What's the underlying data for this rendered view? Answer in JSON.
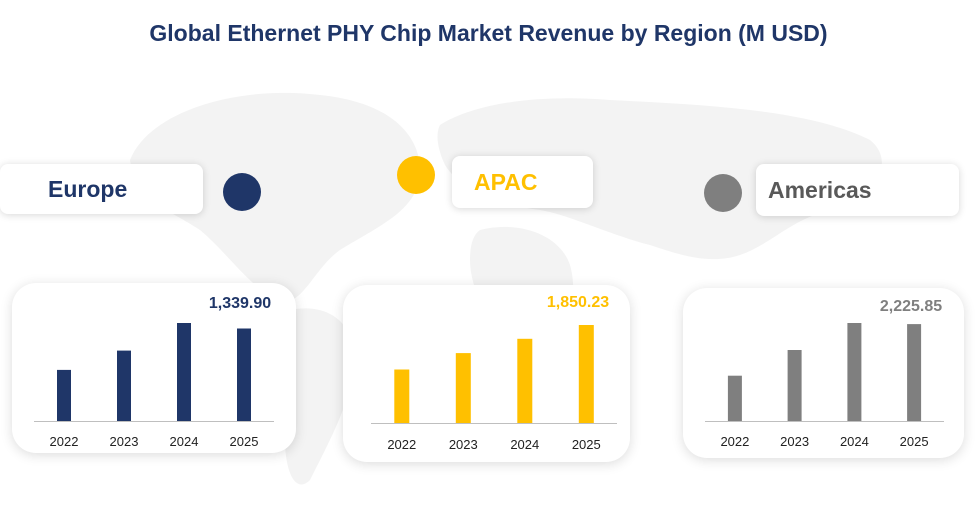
{
  "title": "Global Ethernet PHY Chip Market Revenue by Region (M USD)",
  "colors": {
    "europe": "#1f3668",
    "apac": "#ffc000",
    "americas": "#7f7f7f"
  },
  "chart_data": [
    {
      "type": "bar",
      "region": "Europe",
      "categories": [
        "2022",
        "2023",
        "2024",
        "2025"
      ],
      "values": [
        740,
        1020,
        1420,
        1339.9
      ],
      "value_label": "1,339.90",
      "title": "Europe",
      "xlabel": "",
      "ylabel": ""
    },
    {
      "type": "bar",
      "region": "APAC",
      "categories": [
        "2022",
        "2023",
        "2024",
        "2025"
      ],
      "values": [
        1010,
        1320,
        1590,
        1850.23
      ],
      "value_label": "1,850.23",
      "title": "APAC",
      "xlabel": "",
      "ylabel": ""
    },
    {
      "type": "bar",
      "region": "Americas",
      "categories": [
        "2022",
        "2023",
        "2024",
        "2025"
      ],
      "values": [
        1040,
        1630,
        2250,
        2225.85
      ],
      "value_label": "2,225.85",
      "title": "Americas",
      "xlabel": "",
      "ylabel": ""
    }
  ]
}
